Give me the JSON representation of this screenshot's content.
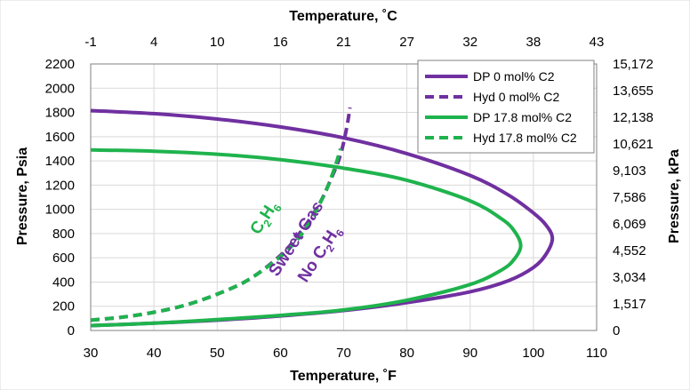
{
  "chart_data": {
    "type": "line",
    "x_bottom": {
      "label": "Temperature, ˚F",
      "range": [
        30,
        110
      ],
      "ticks": [
        30,
        40,
        50,
        60,
        70,
        80,
        90,
        100,
        110
      ]
    },
    "x_top": {
      "label": "Temperature, ˚C",
      "tick_labels": [
        "-1",
        "4",
        "10",
        "16",
        "21",
        "27",
        "32",
        "38",
        "43"
      ]
    },
    "y_left": {
      "label": "Pressure, Psia",
      "range": [
        0,
        2200
      ],
      "ticks": [
        0,
        200,
        400,
        600,
        800,
        1000,
        1200,
        1400,
        1600,
        1800,
        2000,
        2200
      ]
    },
    "y_right": {
      "label": "Pressure, kPa",
      "tick_labels": [
        "0",
        "1,517",
        "3,034",
        "4,552",
        "6,069",
        "7,586",
        "9,103",
        "10,621",
        "12,138",
        "13,655",
        "15,172"
      ]
    },
    "grid": true,
    "legend": "top-right",
    "series": [
      {
        "name": "DP 0 mol% C2",
        "color": "#7030A0",
        "dash": "solid",
        "x": [
          30,
          40,
          50,
          60,
          70,
          80,
          90,
          96,
          100,
          102,
          103,
          102,
          100,
          96,
          90,
          80,
          70,
          60,
          50,
          40,
          30
        ],
        "y": [
          1815,
          1790,
          1745,
          1680,
          1590,
          1460,
          1280,
          1120,
          970,
          870,
          760,
          630,
          520,
          410,
          320,
          230,
          165,
          120,
          85,
          60,
          40
        ]
      },
      {
        "name": "Hyd 0 mol% C2",
        "color": "#7030A0",
        "dash": "dashed",
        "x": [
          30,
          35,
          40,
          45,
          50,
          55,
          60,
          63,
          66,
          68,
          69.5,
          70.5,
          71
        ],
        "y": [
          85,
          110,
          150,
          210,
          300,
          420,
          620,
          800,
          1030,
          1250,
          1450,
          1680,
          1840
        ]
      },
      {
        "name": "DP 17.8 mol% C2",
        "color": "#1FB34D",
        "dash": "solid",
        "x": [
          30,
          40,
          50,
          60,
          70,
          80,
          90,
          95,
          97,
          98,
          97,
          95,
          90,
          80,
          70,
          60,
          50,
          40,
          30
        ],
        "y": [
          1490,
          1480,
          1455,
          1410,
          1340,
          1240,
          1070,
          920,
          820,
          700,
          590,
          500,
          380,
          250,
          170,
          125,
          90,
          60,
          40
        ]
      },
      {
        "name": "Hyd 17.8 mol% C2",
        "color": "#1FB34D",
        "dash": "dashed",
        "x": [
          30,
          35,
          40,
          45,
          50,
          55,
          60,
          63,
          65,
          67,
          68.5,
          69.5
        ],
        "y": [
          85,
          110,
          150,
          210,
          300,
          420,
          610,
          770,
          930,
          1130,
          1330,
          1500
        ]
      }
    ],
    "annotations": [
      {
        "text_parts": [
          "C",
          "2",
          "H",
          "6"
        ],
        "color": "#1FB34D"
      },
      {
        "text": "Sweet Gas",
        "color": "#7030A0"
      },
      {
        "text_parts": [
          "No C",
          "2",
          "H",
          "6"
        ],
        "color": "#7030A0"
      }
    ]
  }
}
